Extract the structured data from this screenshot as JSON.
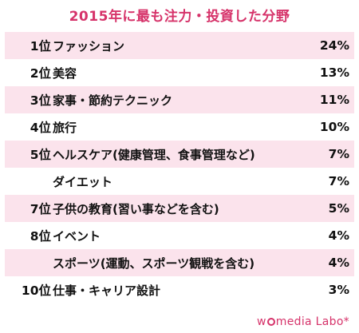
{
  "title": "2015年に最も注力・投資した分野",
  "chart_data": {
    "type": "table",
    "title": "2015年に最も注力・投資した分野",
    "rows": [
      {
        "rank": "1位",
        "category": "ファッション",
        "value": "24%"
      },
      {
        "rank": "2位",
        "category": "美容",
        "value": "13%"
      },
      {
        "rank": "3位",
        "category": "家事・節約テクニック",
        "value": "11%"
      },
      {
        "rank": "4位",
        "category": "旅行",
        "value": "10%"
      },
      {
        "rank": "5位",
        "category": "ヘルスケア(健康管理、食事管理など)",
        "value": "7%"
      },
      {
        "rank": "",
        "category": "ダイエット",
        "value": "7%"
      },
      {
        "rank": "7位",
        "category": "子供の教育(習い事などを含む)",
        "value": "5%"
      },
      {
        "rank": "8位",
        "category": "イベント",
        "value": "4%"
      },
      {
        "rank": "",
        "category": "スポーツ(運動、スポーツ観戦を含む)",
        "value": "4%"
      },
      {
        "rank": "10位",
        "category": "仕事・キャリア設計",
        "value": "3%"
      }
    ],
    "colors": {
      "title": "#d6336a",
      "band": "#fbe3ec",
      "text": "#111111"
    }
  },
  "brand": {
    "logo_text": "wmedia Labo*"
  }
}
